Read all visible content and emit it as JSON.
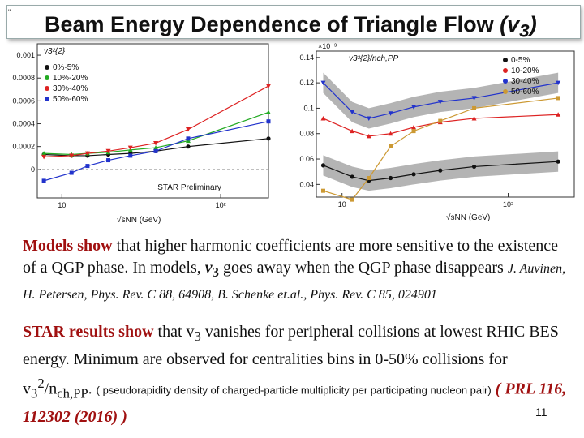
{
  "slide": {
    "title_main": "Beam Energy Dependence of Triangle Flow",
    "title_var": "(v",
    "title_sub": "3",
    "title_close": ")",
    "corner_mark": "\"",
    "page_number": "11"
  },
  "para1": {
    "lead": "Models show",
    "text1": " that higher harmonic coefficients  are more sensitive to the existence of a QGP phase.  In models, ",
    "v3": "v",
    "v3_sub": "3",
    "text2": " goes away when the QGP phase disappears  ",
    "citation": "J. Auvinen, H. Petersen, Phys. Rev. C 88, 64908, B. Schenke et.al., Phys. Rev. C 85, 024901"
  },
  "para2": {
    "lead": "STAR results show",
    "text1": " that v",
    "sub1": "3",
    "text2": " vanishes for peripheral collisions at lowest RHIC BES energy.   Minimum are observed for centralities bins  in  0-50% collisions for v",
    "sub2": "3",
    "sup2": "2",
    "text3": "/n",
    "sub3": "ch,PP",
    "text4": ". ",
    "paren_note": "( pseudorapidity density of charged-particle multiplicity per participating nucleon pair)",
    "prl": " ( PRL 116, 112302 (2016) )"
  },
  "chart_data": [
    {
      "type": "line",
      "ylabel": "v3²{2}",
      "xlabel": "√sNN (GeV)",
      "log_x": true,
      "xlim": [
        7,
        200
      ],
      "ylim": [
        -0.00025,
        0.0011
      ],
      "yticks": [
        "0.001",
        "0.0008",
        "0.0006",
        "0.0004",
        "0.0002",
        "0"
      ],
      "xticks": [
        "10",
        "10²",
        "10³",
        "10⁴"
      ],
      "watermark": "STAR Preliminary",
      "x": [
        7.7,
        11.5,
        14.5,
        19.6,
        27,
        39,
        62.4,
        200
      ],
      "series": [
        {
          "name": "0%-5%",
          "color": "#111111",
          "values": [
            0.00013,
            0.00012,
            0.00012,
            0.00013,
            0.00014,
            0.00016,
            0.0002,
            0.00027
          ]
        },
        {
          "name": "10%-20%",
          "color": "#22aa22",
          "values": [
            0.00014,
            0.00013,
            0.00014,
            0.00015,
            0.00017,
            0.00019,
            0.00025,
            0.0005
          ]
        },
        {
          "name": "30%-40%",
          "color": "#dd2222",
          "values": [
            0.00011,
            0.00012,
            0.00014,
            0.00016,
            0.00019,
            0.00023,
            0.00035,
            0.00073
          ]
        },
        {
          "name": "50%-60%",
          "color": "#2233cc",
          "values": [
            -0.0001,
            -3e-05,
            3e-05,
            8e-05,
            0.00012,
            0.00016,
            0.00027,
            0.00042
          ]
        }
      ]
    },
    {
      "type": "line",
      "ylabel": "v3²{2}/nch,PP",
      "xlabel": "√sNN (GeV)",
      "log_x": true,
      "xlim": [
        7,
        250
      ],
      "ylim": [
        0.03,
        0.145
      ],
      "yscale_note": "×10⁻³",
      "yticks": [
        "0.14",
        "0.12",
        "0.1",
        "0.08",
        "0.06",
        "0.04"
      ],
      "xticks": [
        "10",
        "10²"
      ],
      "x": [
        7.7,
        11.5,
        14.5,
        19.6,
        27,
        39,
        62.4,
        200
      ],
      "series": [
        {
          "name": "0-5%",
          "color": "#111111",
          "values": [
            0.055,
            0.046,
            0.043,
            0.045,
            0.048,
            0.051,
            0.054,
            0.058
          ]
        },
        {
          "name": "10-20%",
          "color": "#dd2222",
          "values": [
            0.092,
            0.082,
            0.078,
            0.08,
            0.085,
            0.089,
            0.092,
            0.095
          ]
        },
        {
          "name": "30-40%",
          "color": "#2233cc",
          "values": [
            0.12,
            0.097,
            0.092,
            0.096,
            0.101,
            0.105,
            0.108,
            0.12
          ]
        },
        {
          "name": "50-60%",
          "color": "#cc9933",
          "values": [
            0.035,
            0.028,
            0.045,
            0.07,
            0.082,
            0.09,
            0.1,
            0.108
          ]
        }
      ]
    }
  ]
}
